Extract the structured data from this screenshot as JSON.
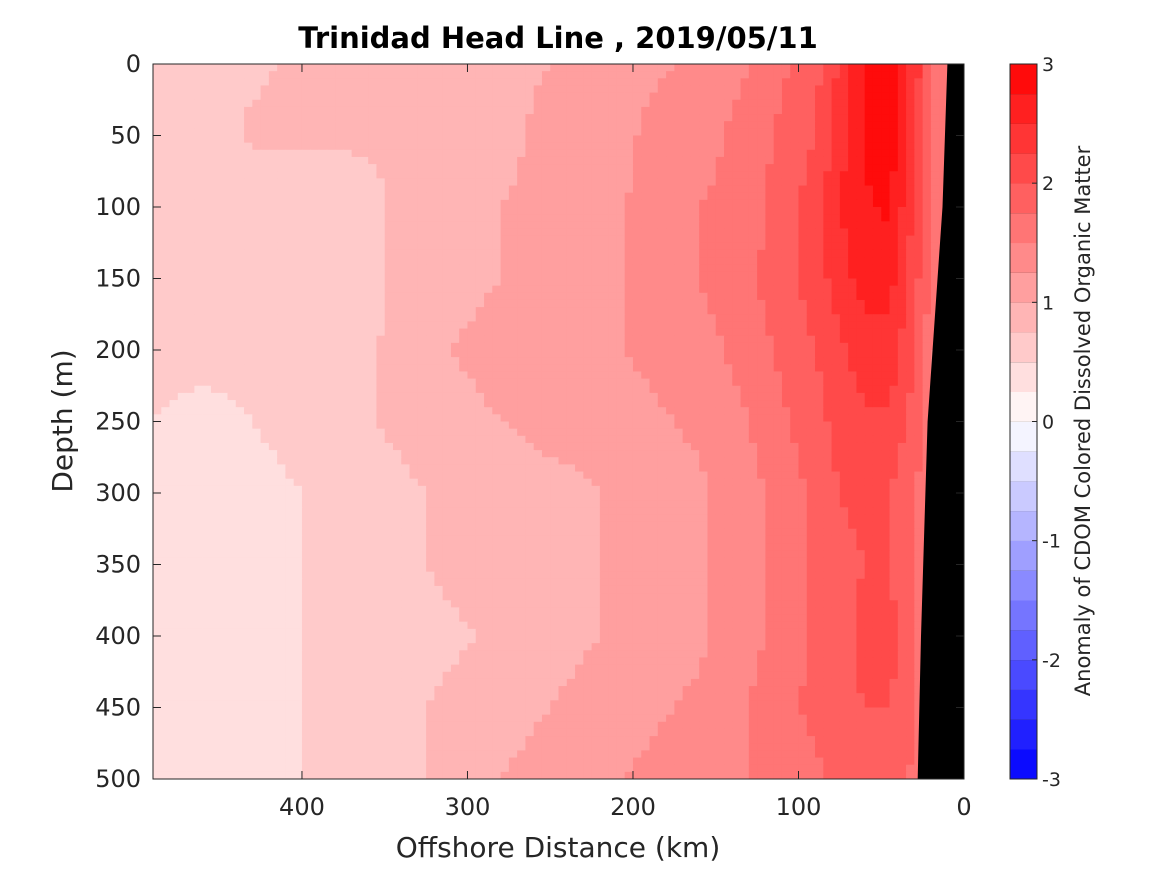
{
  "chart_data": {
    "type": "heatmap",
    "subtype": "filled-contour",
    "title": "Trinidad Head Line , 2019/05/11",
    "xlabel": "Offshore Distance (km)",
    "ylabel": "Depth (m)",
    "colorbar_label": "Anomaly of CDOM Colored Dissolved Organic Matter",
    "xlim": [
      490,
      0
    ],
    "ylim": [
      500,
      0
    ],
    "x_reversed": true,
    "y_reversed": true,
    "x_ticks": [
      400,
      300,
      200,
      100,
      0
    ],
    "y_ticks": [
      0,
      50,
      100,
      150,
      200,
      250,
      300,
      350,
      400,
      450,
      500
    ],
    "colorbar": {
      "range": [
        -3,
        3
      ],
      "step": 0.25,
      "ticks": [
        3,
        2,
        1,
        0,
        -1,
        -2,
        -3
      ],
      "colormap": "blue-white-red",
      "low_color": "#0000ff",
      "mid_color": "#ffffff",
      "high_color": "#ff0000"
    },
    "bathymetry_color": "#000000",
    "bathymetry": [
      [
        10,
        0
      ],
      [
        13,
        100
      ],
      [
        22,
        250
      ],
      [
        26,
        400
      ],
      [
        28,
        500
      ],
      [
        0,
        500
      ],
      [
        0,
        0
      ]
    ],
    "x": [
      490,
      460,
      430,
      400,
      370,
      340,
      310,
      280,
      250,
      220,
      190,
      160,
      130,
      110,
      90,
      75,
      60,
      45,
      30,
      15
    ],
    "y": [
      0,
      50,
      100,
      150,
      200,
      250,
      300,
      350,
      400,
      450,
      500
    ],
    "z": [
      [
        0.6,
        0.6,
        0.7,
        0.8,
        0.9,
        0.8,
        0.8,
        0.9,
        1.0,
        1.1,
        1.2,
        1.3,
        1.5,
        1.7,
        1.9,
        2.3,
        2.8,
        2.9,
        2.4,
        1.6
      ],
      [
        0.6,
        0.6,
        0.8,
        0.8,
        0.8,
        0.8,
        0.9,
        0.9,
        1.1,
        1.1,
        1.3,
        1.4,
        1.6,
        1.8,
        2.0,
        2.4,
        2.8,
        2.9,
        2.3,
        1.5
      ],
      [
        0.5,
        0.5,
        0.5,
        0.5,
        0.6,
        0.8,
        0.9,
        1.0,
        1.1,
        1.2,
        1.3,
        1.5,
        1.6,
        1.9,
        2.1,
        2.5,
        2.7,
        2.8,
        2.2,
        1.5
      ],
      [
        0.6,
        0.6,
        0.6,
        0.5,
        0.6,
        0.8,
        0.9,
        1.0,
        1.1,
        1.2,
        1.3,
        1.5,
        1.7,
        1.9,
        2.1,
        2.4,
        2.6,
        2.6,
        2.1,
        1.5
      ],
      [
        0.6,
        0.6,
        0.6,
        0.6,
        0.7,
        0.8,
        1.0,
        1.1,
        1.1,
        1.2,
        1.3,
        1.4,
        1.6,
        1.8,
        2.0,
        2.2,
        2.4,
        2.4,
        2.0,
        1.4
      ],
      [
        0.5,
        0.4,
        0.5,
        0.6,
        0.7,
        0.8,
        0.9,
        1.0,
        1.1,
        1.1,
        1.2,
        1.3,
        1.5,
        1.7,
        1.9,
        2.1,
        2.2,
        2.2,
        1.9,
        1.4
      ],
      [
        0.4,
        0.4,
        0.4,
        0.5,
        0.6,
        0.7,
        0.8,
        0.8,
        0.9,
        1.0,
        1.1,
        1.2,
        1.4,
        1.6,
        1.8,
        2.0,
        2.1,
        2.0,
        1.8,
        1.3
      ],
      [
        0.4,
        0.4,
        0.4,
        0.5,
        0.6,
        0.7,
        0.8,
        0.9,
        0.9,
        1.0,
        1.1,
        1.2,
        1.4,
        1.6,
        1.8,
        1.9,
        2.0,
        2.0,
        1.7,
        1.3
      ],
      [
        0.4,
        0.4,
        0.5,
        0.5,
        0.6,
        0.7,
        0.7,
        0.8,
        0.9,
        1.0,
        1.1,
        1.2,
        1.4,
        1.6,
        1.8,
        1.9,
        2.1,
        2.1,
        1.8,
        1.3
      ],
      [
        0.4,
        0.4,
        0.4,
        0.5,
        0.6,
        0.7,
        0.8,
        0.9,
        1.0,
        1.1,
        1.2,
        1.3,
        1.5,
        1.7,
        1.8,
        1.9,
        2.0,
        2.0,
        1.8,
        1.3
      ],
      [
        0.4,
        0.4,
        0.4,
        0.5,
        0.6,
        0.7,
        0.8,
        1.0,
        1.1,
        1.2,
        1.3,
        1.4,
        1.5,
        1.6,
        1.7,
        1.8,
        1.9,
        1.9,
        1.7,
        1.3
      ]
    ]
  }
}
